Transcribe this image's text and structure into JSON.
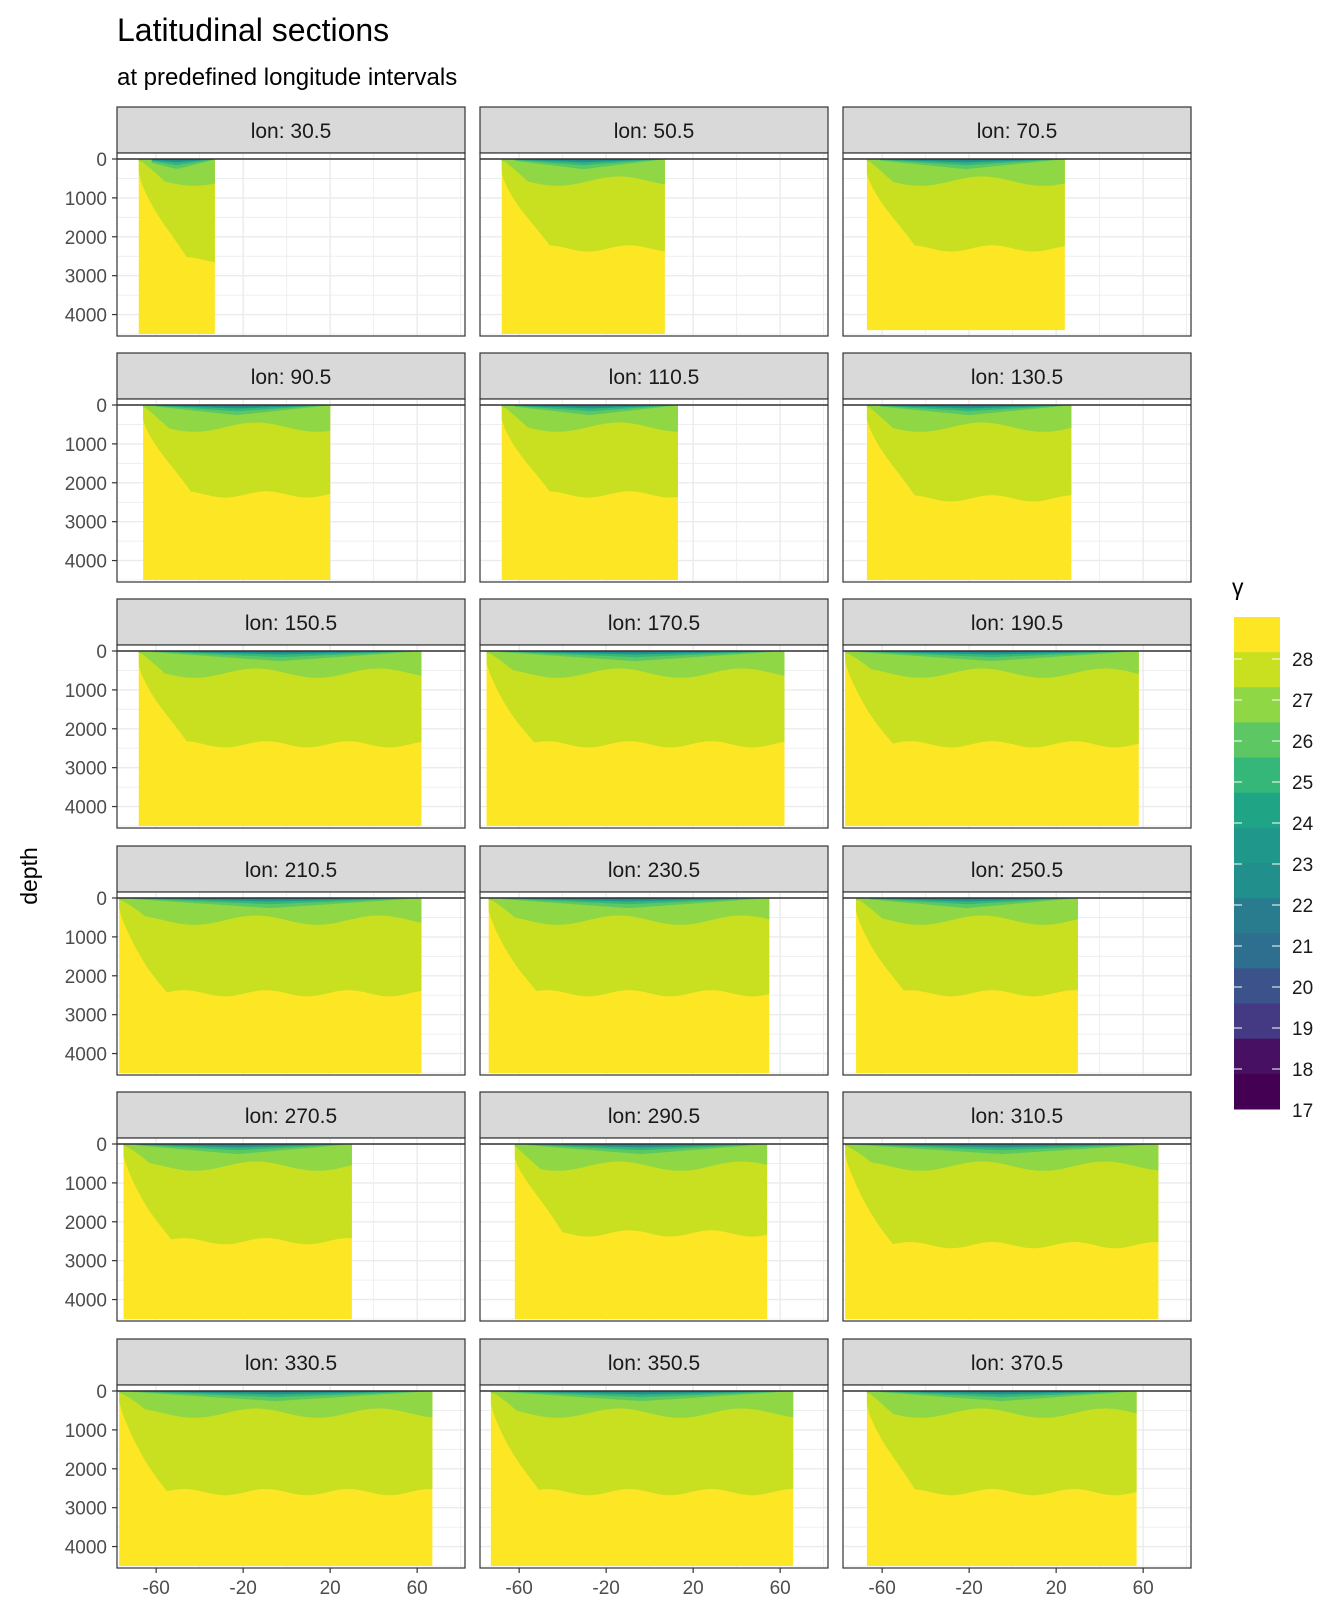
{
  "chart_data": {
    "type": "heatmap",
    "title": "Latitudinal sections",
    "subtitle": "at predefined longitude intervals",
    "xlabel": "",
    "ylabel": "depth",
    "xlim": [
      -78,
      82
    ],
    "ylim": [
      4500,
      0
    ],
    "x_ticks": [
      -60,
      -20,
      20,
      60
    ],
    "y_ticks": [
      0,
      1000,
      2000,
      3000,
      4000
    ],
    "legend": {
      "title": "γ",
      "position": "right",
      "labels": [
        "28",
        "27",
        "26",
        "25",
        "24",
        "23",
        "22",
        "21",
        "20",
        "19",
        "18",
        "17"
      ],
      "colors": [
        "#FDE725",
        "#C8E020",
        "#8FD744",
        "#5DC863",
        "#35B779",
        "#20A486",
        "#1F988B",
        "#21908C",
        "#287C8E",
        "#2E6E8E",
        "#3B528B",
        "#443A83",
        "#471063",
        "#440154"
      ]
    },
    "panels": [
      {
        "label": "lon: 30.5",
        "lat": [
          -68,
          -33
        ],
        "bottom": 4500,
        "dense_top": 2600,
        "dense_mid": 2100
      },
      {
        "label": "lon: 50.5",
        "lat": [
          -68,
          7
        ],
        "bottom": 4500,
        "dense_top": 2300,
        "dense_mid": 2500
      },
      {
        "label": "lon: 70.5",
        "lat": [
          -67,
          24
        ],
        "bottom": 4400,
        "dense_top": 2300,
        "dense_mid": 2300
      },
      {
        "label": "lon: 90.5",
        "lat": [
          -66,
          20
        ],
        "bottom": 4500,
        "dense_top": 2300,
        "dense_mid": 2300
      },
      {
        "label": "lon: 110.5",
        "lat": [
          -68,
          13
        ],
        "bottom": 4500,
        "dense_top": 2300,
        "dense_mid": 2300
      },
      {
        "label": "lon: 130.5",
        "lat": [
          -67,
          27
        ],
        "bottom": 4500,
        "dense_top": 2400,
        "dense_mid": 2400
      },
      {
        "label": "lon: 150.5",
        "lat": [
          -68,
          62
        ],
        "bottom": 4500,
        "dense_top": 2400,
        "dense_mid": 2400
      },
      {
        "label": "lon: 170.5",
        "lat": [
          -75,
          62
        ],
        "bottom": 4500,
        "dense_top": 2400,
        "dense_mid": 2400
      },
      {
        "label": "lon: 190.5",
        "lat": [
          -77,
          58
        ],
        "bottom": 4500,
        "dense_top": 2400,
        "dense_mid": 2400
      },
      {
        "label": "lon: 210.5",
        "lat": [
          -77,
          62
        ],
        "bottom": 4500,
        "dense_top": 2450,
        "dense_mid": 2450
      },
      {
        "label": "lon: 230.5",
        "lat": [
          -74,
          55
        ],
        "bottom": 4500,
        "dense_top": 2450,
        "dense_mid": 2450
      },
      {
        "label": "lon: 250.5",
        "lat": [
          -72,
          30
        ],
        "bottom": 4500,
        "dense_top": 2450,
        "dense_mid": 2450
      },
      {
        "label": "lon: 270.5",
        "lat": [
          -75,
          30
        ],
        "bottom": 4500,
        "dense_top": 2500,
        "dense_mid": 2500
      },
      {
        "label": "lon: 290.5",
        "lat": [
          -62,
          54
        ],
        "bottom": 4500,
        "dense_top": 2300,
        "dense_mid": 2300
      },
      {
        "label": "lon: 310.5",
        "lat": [
          -77,
          67
        ],
        "bottom": 4500,
        "dense_top": 2600,
        "dense_mid": 2600
      },
      {
        "label": "lon: 330.5",
        "lat": [
          -77,
          67
        ],
        "bottom": 4500,
        "dense_top": 2600,
        "dense_mid": 2600
      },
      {
        "label": "lon: 350.5",
        "lat": [
          -73,
          66
        ],
        "bottom": 4500,
        "dense_top": 2600,
        "dense_mid": 2600
      },
      {
        "label": "lon: 370.5",
        "lat": [
          -67,
          57
        ],
        "bottom": 4500,
        "dense_top": 2600,
        "dense_mid": 2600
      }
    ]
  }
}
